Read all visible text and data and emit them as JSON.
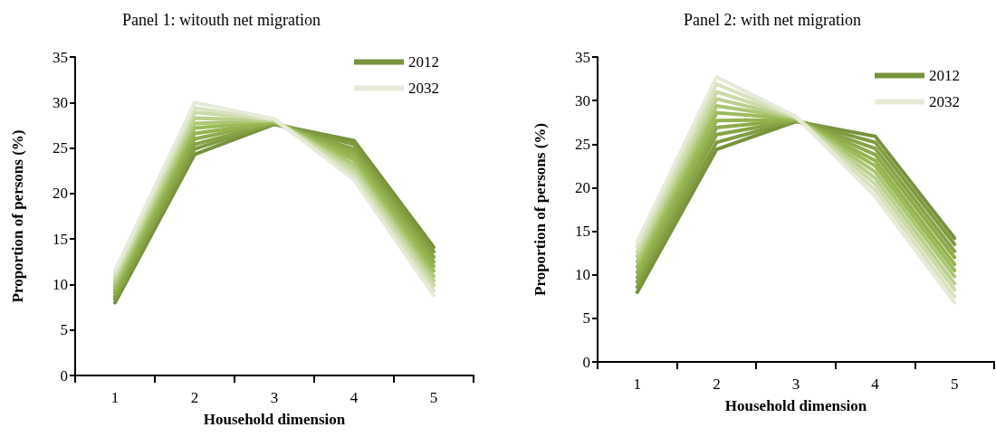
{
  "chart_data": [
    {
      "type": "line",
      "title": "Panel 1: witouth net migration",
      "xlabel": "Household dimension",
      "ylabel": "Proportion of persons (%)",
      "categories": [
        "1",
        "2",
        "3",
        "4",
        "5"
      ],
      "ylim": [
        0,
        35
      ],
      "yticks": [
        0,
        5,
        10,
        15,
        20,
        25,
        30,
        35
      ],
      "grid": false,
      "legend": "top right",
      "marker": "none",
      "series": [
        {
          "name": "2012",
          "color": "#77933c",
          "values": [
            8,
            24.3,
            27.6,
            25.8,
            14.1
          ]
        },
        {
          "color": "#7f9b40",
          "values": [
            8.4,
            24.9,
            27.7,
            25.4,
            13.6
          ]
        },
        {
          "color": "#86a345",
          "values": [
            8.7,
            25.4,
            27.7,
            24.9,
            13.0
          ]
        },
        {
          "color": "#8dab4a",
          "values": [
            9.1,
            26.0,
            27.8,
            24.5,
            12.5
          ]
        },
        {
          "color": "#94b350",
          "values": [
            9.4,
            26.6,
            27.8,
            24.1,
            12.0
          ]
        },
        {
          "color": "#9bbb59",
          "values": [
            9.8,
            27.2,
            27.9,
            23.7,
            11.5
          ]
        },
        {
          "color": "#abc673",
          "values": [
            10.1,
            27.7,
            28.0,
            23.2,
            10.9
          ]
        },
        {
          "color": "#bbd08d",
          "values": [
            10.5,
            28.3,
            28.0,
            22.8,
            10.4
          ]
        },
        {
          "color": "#cbdaa7",
          "values": [
            10.8,
            28.9,
            28.1,
            22.4,
            9.9
          ]
        },
        {
          "color": "#d9e2c0",
          "values": [
            11.2,
            29.4,
            28.1,
            21.9,
            9.3
          ]
        },
        {
          "name": "2032",
          "color": "#e6ebd8",
          "values": [
            11.5,
            30,
            28.2,
            21.5,
            8.8
          ]
        }
      ]
    },
    {
      "type": "line",
      "title": "Panel 2: with net migration",
      "xlabel": "Household dimension",
      "ylabel": "Proportion of persons (%)",
      "categories": [
        "1",
        "2",
        "3",
        "4",
        "5"
      ],
      "ylim": [
        0,
        35
      ],
      "yticks": [
        0,
        5,
        10,
        15,
        20,
        25,
        30,
        35
      ],
      "grid": false,
      "legend": "top right",
      "marker": "none",
      "series": [
        {
          "name": "2012",
          "color": "#77933c",
          "values": [
            8,
            24.4,
            27.6,
            25.9,
            14.2
          ]
        },
        {
          "color": "#7f9b40",
          "values": [
            8.6,
            25.2,
            27.7,
            25.2,
            13.5
          ]
        },
        {
          "color": "#86a345",
          "values": [
            9.2,
            26.1,
            27.7,
            24.5,
            12.7
          ]
        },
        {
          "color": "#8dab4a",
          "values": [
            9.7,
            26.9,
            27.8,
            23.8,
            12.0
          ]
        },
        {
          "color": "#94b350",
          "values": [
            10.3,
            27.7,
            27.8,
            23.1,
            11.2
          ]
        },
        {
          "color": "#9bbb59",
          "values": [
            10.9,
            28.6,
            27.9,
            22.5,
            10.5
          ]
        },
        {
          "color": "#abc673",
          "values": [
            11.5,
            29.4,
            28.0,
            21.8,
            9.8
          ]
        },
        {
          "color": "#bbd08d",
          "values": [
            12.1,
            30.2,
            28.0,
            21.1,
            9.0
          ]
        },
        {
          "color": "#cbdaa7",
          "values": [
            12.6,
            31.0,
            28.1,
            20.4,
            8.3
          ]
        },
        {
          "color": "#d9e2c0",
          "values": [
            13.2,
            31.9,
            28.1,
            19.7,
            7.5
          ]
        },
        {
          "name": "2032",
          "color": "#e6ebd8",
          "values": [
            13.8,
            32.7,
            28.2,
            19.0,
            6.8
          ]
        }
      ]
    }
  ]
}
